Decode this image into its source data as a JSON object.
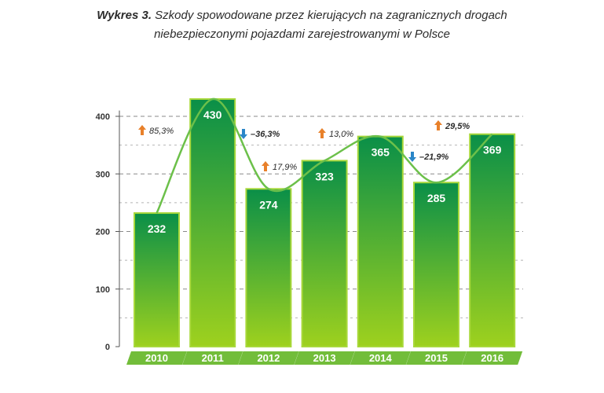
{
  "title_prefix": "Wykres 3.",
  "title_line1": "Szkody spowodowane przez kierujących na zagranicznych drogach",
  "title_line2": "niebezpieczonymi pojazdami zarejestrowanymi w Polsce",
  "colors": {
    "bar_top": "#0a8f48",
    "bar_bottom": "#9ed11e",
    "bar_border": "#a8d83a",
    "line": "#6cc04a",
    "arrow_up": "#e8802a",
    "arrow_down": "#2a86c8",
    "year_band": "#72bd3a"
  },
  "chart_data": {
    "type": "bar",
    "categories": [
      "2010",
      "2011",
      "2012",
      "2013",
      "2014",
      "2015",
      "2016"
    ],
    "values": [
      232,
      430,
      274,
      323,
      365,
      285,
      369
    ],
    "changes": [
      {
        "between": "2010-2011",
        "label": "85,3%",
        "direction": "up",
        "emphasis": "normal"
      },
      {
        "between": "2011-2012",
        "label": "–36,3%",
        "direction": "down",
        "emphasis": "bold"
      },
      {
        "between": "2012-2013",
        "label": "17,9%",
        "direction": "up",
        "emphasis": "normal"
      },
      {
        "between": "2013-2014",
        "label": "13,0%",
        "direction": "up",
        "emphasis": "normal"
      },
      {
        "between": "2014-2015",
        "label": "–21,9%",
        "direction": "down",
        "emphasis": "bold"
      },
      {
        "between": "2015-2016",
        "label": "29,5%",
        "direction": "up",
        "emphasis": "bold"
      }
    ],
    "yticks": [
      0,
      100,
      200,
      300,
      400
    ],
    "ylim": [
      0,
      450
    ],
    "grid": true,
    "xlabel": "",
    "ylabel": ""
  }
}
